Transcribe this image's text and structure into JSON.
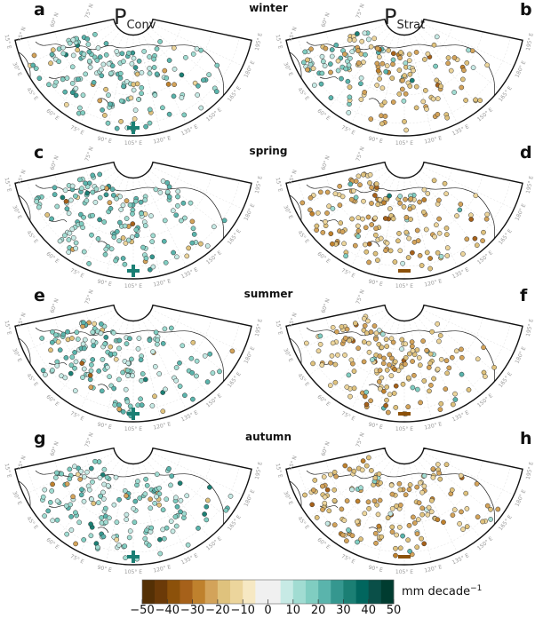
{
  "columns": [
    {
      "symbol": "P",
      "subscript": "Conv"
    },
    {
      "symbol": "P",
      "subscript": "Strat"
    }
  ],
  "seasons": [
    "winter",
    "spring",
    "summer",
    "autumn"
  ],
  "panels": [
    {
      "letter": "a",
      "season": "winter",
      "column": 0,
      "trend_sign": "+",
      "dominant": "positive"
    },
    {
      "letter": "b",
      "season": "winter",
      "column": 1,
      "trend_sign": "",
      "dominant": "mixed"
    },
    {
      "letter": "c",
      "season": "spring",
      "column": 0,
      "trend_sign": "+",
      "dominant": "positive"
    },
    {
      "letter": "d",
      "season": "spring",
      "column": 1,
      "trend_sign": "−",
      "dominant": "negative"
    },
    {
      "letter": "e",
      "season": "summer",
      "column": 0,
      "trend_sign": "+",
      "dominant": "positive"
    },
    {
      "letter": "f",
      "season": "summer",
      "column": 1,
      "trend_sign": "−",
      "dominant": "negative"
    },
    {
      "letter": "g",
      "season": "autumn",
      "column": 0,
      "trend_sign": "+",
      "dominant": "positive"
    },
    {
      "letter": "h",
      "season": "autumn",
      "column": 1,
      "trend_sign": "−",
      "dominant": "negative"
    }
  ],
  "longitude_labels": [
    "15° E",
    "30° E",
    "45° E",
    "60° E",
    "75° E",
    "90° E",
    "105° E",
    "120° E",
    "135° E",
    "150° E",
    "165° E",
    "180° E",
    "195° E"
  ],
  "latitude_labels": [
    "45° N",
    "60° N",
    "75° N"
  ],
  "colorbar": {
    "unit_label": "mm decade",
    "unit_exponent": "−1",
    "range": [
      -50,
      50
    ],
    "ticks": [
      "−50",
      "−40",
      "−30",
      "−20",
      "−10",
      "0",
      "10",
      "20",
      "30",
      "40",
      "50"
    ],
    "colors": [
      "#543005",
      "#6b3a08",
      "#8c510a",
      "#a6611a",
      "#bf812d",
      "#d3a35a",
      "#dfc27d",
      "#ecd59c",
      "#f6e8c3",
      "#f0f0f0",
      "#f0f0f0",
      "#c7eae5",
      "#a1dcd2",
      "#80cdc1",
      "#5ab4ac",
      "#35978f",
      "#1b7f74",
      "#01665e",
      "#0a4f48",
      "#003c30"
    ]
  }
}
